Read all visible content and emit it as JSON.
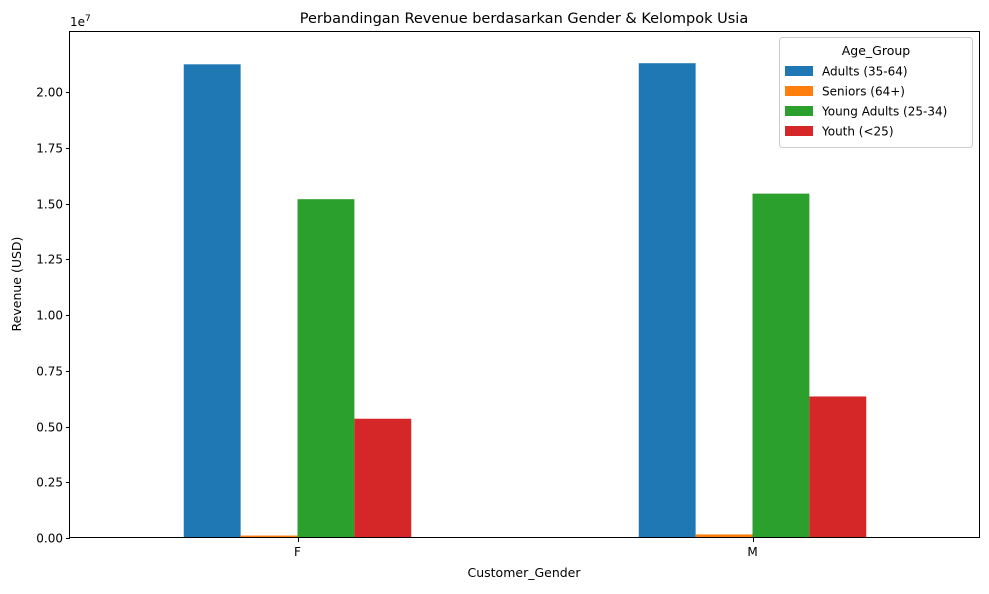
{
  "chart_data": {
    "type": "bar",
    "title": "Perbandingan Revenue berdasarkan Gender & Kelompok Usia",
    "xlabel": "Customer_Gender",
    "ylabel": "Revenue (USD)",
    "y_offset_label": "1e7",
    "categories": [
      "F",
      "M"
    ],
    "ylim": [
      0,
      22700000
    ],
    "yticks": [
      0,
      2500000,
      5000000,
      7500000,
      10000000,
      12500000,
      15000000,
      17500000,
      20000000
    ],
    "ytick_labels": [
      "0.00",
      "0.25",
      "0.50",
      "0.75",
      "1.00",
      "1.25",
      "1.50",
      "1.75",
      "2.00"
    ],
    "legend_title": "Age_Group",
    "legend_position": "top-right",
    "grid": false,
    "series": [
      {
        "name": "Adults (35-64)",
        "color": "#1f77b4",
        "values": [
          21250000,
          21300000
        ]
      },
      {
        "name": "Seniors (64+)",
        "color": "#ff7f0e",
        "values": [
          110000,
          160000
        ]
      },
      {
        "name": "Young Adults (25-34)",
        "color": "#2ca02c",
        "values": [
          15200000,
          15450000
        ]
      },
      {
        "name": "Youth (<25)",
        "color": "#d62728",
        "values": [
          5350000,
          6350000
        ]
      }
    ]
  }
}
